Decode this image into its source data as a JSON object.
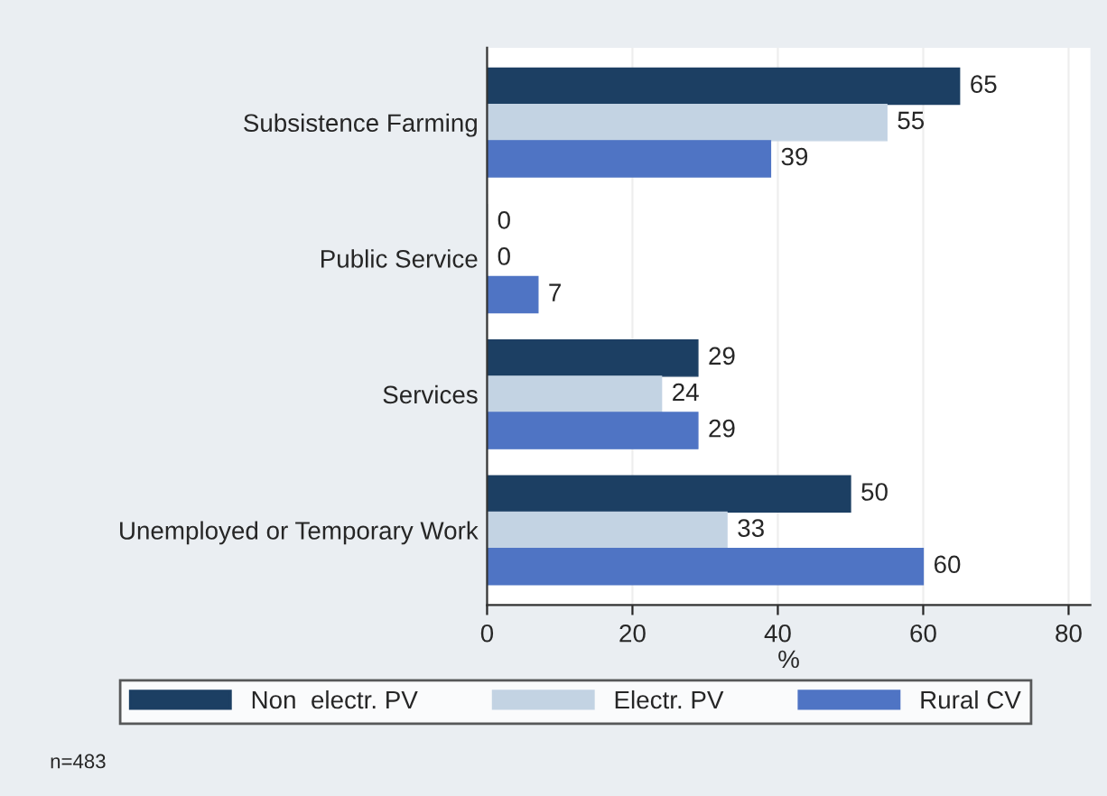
{
  "chart_data": {
    "type": "bar",
    "orientation": "horizontal",
    "categories": [
      "Subsistence Farming",
      "Public Service",
      "Services",
      "Unemployed or Temporary Work"
    ],
    "series": [
      {
        "name": "Non  electr. PV",
        "color": "#1c3f63",
        "values": [
          65,
          0,
          29,
          50
        ]
      },
      {
        "name": "Electr. PV",
        "color": "#c3d3e3",
        "values": [
          55,
          0,
          24,
          33
        ]
      },
      {
        "name": "Rural CV",
        "color": "#4f74c4",
        "values": [
          39,
          7,
          29,
          60
        ]
      }
    ],
    "xlabel": "%",
    "xlim": [
      0,
      83
    ],
    "xticks": [
      0,
      20,
      40,
      60,
      80
    ],
    "grid": "x",
    "legend": "bottom",
    "data_labels": true,
    "annotations": [
      "n=483"
    ]
  }
}
